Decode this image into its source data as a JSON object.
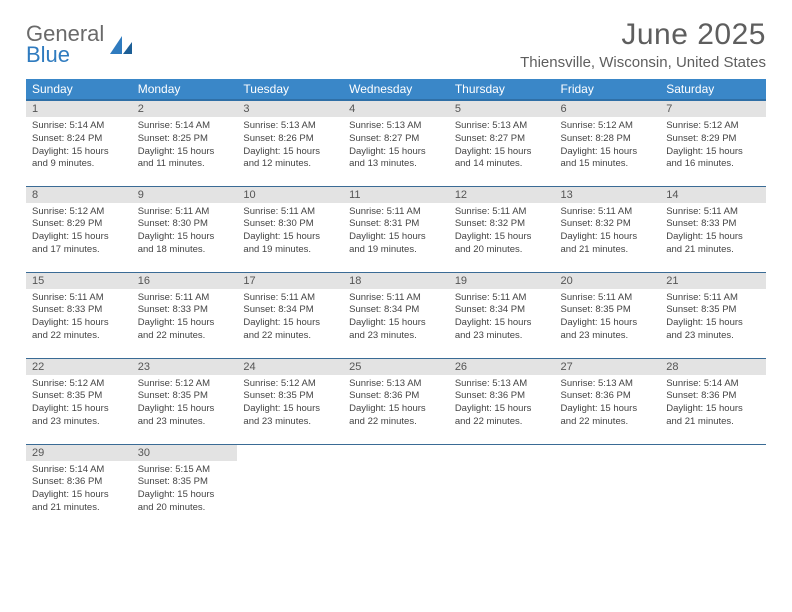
{
  "brand": {
    "word1": "General",
    "word2": "Blue"
  },
  "title": "June 2025",
  "location": "Thiensville, Wisconsin, United States",
  "colors": {
    "header_bg": "#3a87c8",
    "header_text": "#ffffff",
    "row_divider": "#3a6b95",
    "daynum_bg": "#e3e3e3",
    "brand_gray": "#6a6a6a",
    "brand_blue": "#2f7bbf",
    "text": "#444444",
    "title_color": "#5e5e5e"
  },
  "weekdays": [
    "Sunday",
    "Monday",
    "Tuesday",
    "Wednesday",
    "Thursday",
    "Friday",
    "Saturday"
  ],
  "days": [
    {
      "n": "1",
      "sr": "5:14 AM",
      "ss": "8:24 PM",
      "d1": "Daylight: 15 hours",
      "d2": "and 9 minutes."
    },
    {
      "n": "2",
      "sr": "5:14 AM",
      "ss": "8:25 PM",
      "d1": "Daylight: 15 hours",
      "d2": "and 11 minutes."
    },
    {
      "n": "3",
      "sr": "5:13 AM",
      "ss": "8:26 PM",
      "d1": "Daylight: 15 hours",
      "d2": "and 12 minutes."
    },
    {
      "n": "4",
      "sr": "5:13 AM",
      "ss": "8:27 PM",
      "d1": "Daylight: 15 hours",
      "d2": "and 13 minutes."
    },
    {
      "n": "5",
      "sr": "5:13 AM",
      "ss": "8:27 PM",
      "d1": "Daylight: 15 hours",
      "d2": "and 14 minutes."
    },
    {
      "n": "6",
      "sr": "5:12 AM",
      "ss": "8:28 PM",
      "d1": "Daylight: 15 hours",
      "d2": "and 15 minutes."
    },
    {
      "n": "7",
      "sr": "5:12 AM",
      "ss": "8:29 PM",
      "d1": "Daylight: 15 hours",
      "d2": "and 16 minutes."
    },
    {
      "n": "8",
      "sr": "5:12 AM",
      "ss": "8:29 PM",
      "d1": "Daylight: 15 hours",
      "d2": "and 17 minutes."
    },
    {
      "n": "9",
      "sr": "5:11 AM",
      "ss": "8:30 PM",
      "d1": "Daylight: 15 hours",
      "d2": "and 18 minutes."
    },
    {
      "n": "10",
      "sr": "5:11 AM",
      "ss": "8:30 PM",
      "d1": "Daylight: 15 hours",
      "d2": "and 19 minutes."
    },
    {
      "n": "11",
      "sr": "5:11 AM",
      "ss": "8:31 PM",
      "d1": "Daylight: 15 hours",
      "d2": "and 19 minutes."
    },
    {
      "n": "12",
      "sr": "5:11 AM",
      "ss": "8:32 PM",
      "d1": "Daylight: 15 hours",
      "d2": "and 20 minutes."
    },
    {
      "n": "13",
      "sr": "5:11 AM",
      "ss": "8:32 PM",
      "d1": "Daylight: 15 hours",
      "d2": "and 21 minutes."
    },
    {
      "n": "14",
      "sr": "5:11 AM",
      "ss": "8:33 PM",
      "d1": "Daylight: 15 hours",
      "d2": "and 21 minutes."
    },
    {
      "n": "15",
      "sr": "5:11 AM",
      "ss": "8:33 PM",
      "d1": "Daylight: 15 hours",
      "d2": "and 22 minutes."
    },
    {
      "n": "16",
      "sr": "5:11 AM",
      "ss": "8:33 PM",
      "d1": "Daylight: 15 hours",
      "d2": "and 22 minutes."
    },
    {
      "n": "17",
      "sr": "5:11 AM",
      "ss": "8:34 PM",
      "d1": "Daylight: 15 hours",
      "d2": "and 22 minutes."
    },
    {
      "n": "18",
      "sr": "5:11 AM",
      "ss": "8:34 PM",
      "d1": "Daylight: 15 hours",
      "d2": "and 23 minutes."
    },
    {
      "n": "19",
      "sr": "5:11 AM",
      "ss": "8:34 PM",
      "d1": "Daylight: 15 hours",
      "d2": "and 23 minutes."
    },
    {
      "n": "20",
      "sr": "5:11 AM",
      "ss": "8:35 PM",
      "d1": "Daylight: 15 hours",
      "d2": "and 23 minutes."
    },
    {
      "n": "21",
      "sr": "5:11 AM",
      "ss": "8:35 PM",
      "d1": "Daylight: 15 hours",
      "d2": "and 23 minutes."
    },
    {
      "n": "22",
      "sr": "5:12 AM",
      "ss": "8:35 PM",
      "d1": "Daylight: 15 hours",
      "d2": "and 23 minutes."
    },
    {
      "n": "23",
      "sr": "5:12 AM",
      "ss": "8:35 PM",
      "d1": "Daylight: 15 hours",
      "d2": "and 23 minutes."
    },
    {
      "n": "24",
      "sr": "5:12 AM",
      "ss": "8:35 PM",
      "d1": "Daylight: 15 hours",
      "d2": "and 23 minutes."
    },
    {
      "n": "25",
      "sr": "5:13 AM",
      "ss": "8:36 PM",
      "d1": "Daylight: 15 hours",
      "d2": "and 22 minutes."
    },
    {
      "n": "26",
      "sr": "5:13 AM",
      "ss": "8:36 PM",
      "d1": "Daylight: 15 hours",
      "d2": "and 22 minutes."
    },
    {
      "n": "27",
      "sr": "5:13 AM",
      "ss": "8:36 PM",
      "d1": "Daylight: 15 hours",
      "d2": "and 22 minutes."
    },
    {
      "n": "28",
      "sr": "5:14 AM",
      "ss": "8:36 PM",
      "d1": "Daylight: 15 hours",
      "d2": "and 21 minutes."
    },
    {
      "n": "29",
      "sr": "5:14 AM",
      "ss": "8:36 PM",
      "d1": "Daylight: 15 hours",
      "d2": "and 21 minutes."
    },
    {
      "n": "30",
      "sr": "5:15 AM",
      "ss": "8:35 PM",
      "d1": "Daylight: 15 hours",
      "d2": "and 20 minutes."
    }
  ],
  "labels": {
    "sunrise": "Sunrise: ",
    "sunset": "Sunset: "
  }
}
